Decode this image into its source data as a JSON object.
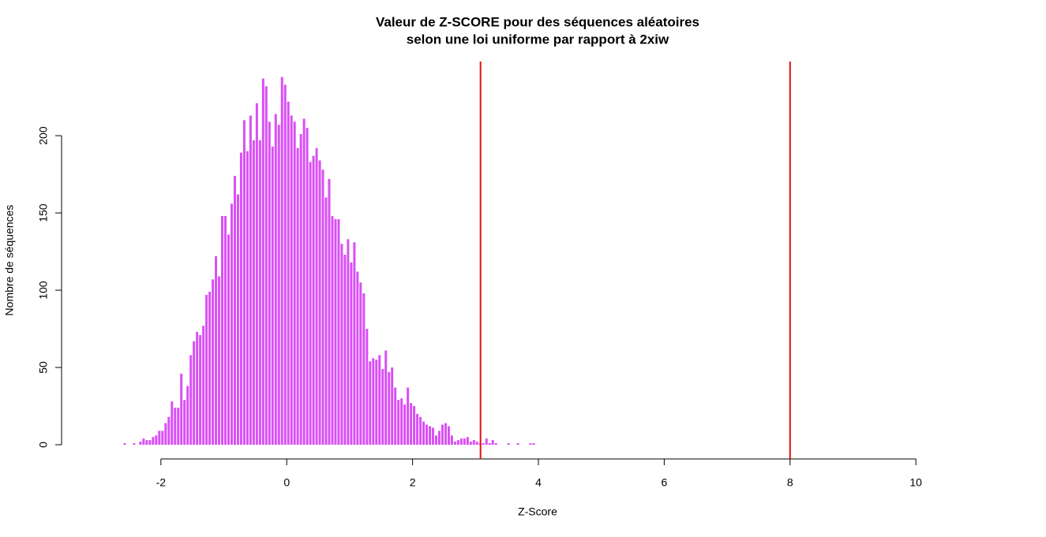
{
  "chart_data": {
    "type": "histogram",
    "title": "Valeur de Z-SCORE pour des séquences aléatoires",
    "subtitle": "selon une loi uniforme par rapport à 2xiw",
    "x_label": "Z-Score",
    "y_label": "Nombre de séquences",
    "color": "#d94ff5",
    "bins": [
      -2.6,
      -2.55,
      -2.5,
      -2.45,
      -2.4,
      -2.35,
      -2.3,
      -2.25,
      -2.2,
      -2.15,
      -2.1,
      -2.05,
      -2,
      -1.95,
      -1.9,
      -1.85,
      -1.8,
      -1.75,
      -1.7,
      -1.65,
      -1.6,
      -1.55,
      -1.5,
      -1.45,
      -1.4,
      -1.35,
      -1.3,
      -1.25,
      -1.2,
      -1.15,
      -1.1,
      -1.05,
      -1,
      -0.95,
      -0.9,
      -0.85,
      -0.8,
      -0.75,
      -0.7,
      -0.65,
      -0.6,
      -0.55,
      -0.5,
      -0.45,
      -0.4,
      -0.35,
      -0.3,
      -0.25,
      -0.2,
      -0.15,
      -0.1,
      -0.05,
      0,
      0.05,
      0.1,
      0.15,
      0.2,
      0.25,
      0.3,
      0.35,
      0.4,
      0.45,
      0.5,
      0.55,
      0.6,
      0.65,
      0.7,
      0.75,
      0.8,
      0.85,
      0.9,
      0.95,
      1,
      1.05,
      1.1,
      1.15,
      1.2,
      1.25,
      1.3,
      1.35,
      1.4,
      1.45,
      1.5,
      1.55,
      1.6,
      1.65,
      1.7,
      1.75,
      1.8,
      1.85,
      1.9,
      1.95,
      2,
      2.05,
      2.1,
      2.15,
      2.2,
      2.25,
      2.3,
      2.35,
      2.4,
      2.45,
      2.5,
      2.55,
      2.6,
      2.65,
      2.7,
      2.75,
      2.8,
      2.85,
      2.9,
      2.95,
      3,
      3.05,
      3.1,
      3.15,
      3.2,
      3.25,
      3.3,
      3.35,
      3.4,
      3.45,
      3.5,
      3.55,
      3.6,
      3.65,
      3.7,
      3.75,
      3.8,
      3.85,
      3.9,
      3.95,
      4
    ],
    "values": [
      1,
      0,
      0,
      1,
      0,
      2,
      4,
      3,
      3,
      5,
      6,
      9,
      9,
      14,
      18,
      28,
      24,
      24,
      46,
      29,
      38,
      58,
      67,
      73,
      71,
      77,
      97,
      99,
      107,
      122,
      109,
      148,
      148,
      136,
      156,
      174,
      162,
      189,
      210,
      190,
      213,
      197,
      221,
      197,
      237,
      232,
      209,
      193,
      214,
      207,
      238,
      233,
      222,
      213,
      209,
      192,
      201,
      211,
      205,
      183,
      187,
      192,
      184,
      178,
      160,
      172,
      148,
      146,
      146,
      130,
      123,
      133,
      118,
      131,
      112,
      105,
      98,
      75,
      54,
      56,
      55,
      58,
      49,
      61,
      47,
      50,
      37,
      29,
      30,
      26,
      37,
      27,
      25,
      20,
      18,
      15,
      13,
      12,
      11,
      6,
      9,
      13,
      14,
      12,
      6,
      2,
      3,
      4,
      4,
      5,
      2,
      3,
      2,
      1,
      1,
      4,
      1,
      3,
      1,
      0,
      0,
      0,
      1,
      0,
      0,
      1,
      0,
      0,
      0,
      1,
      1,
      0
    ],
    "vlines": [
      3.08,
      8
    ],
    "vline_color": "#e01010",
    "xlim": [
      -2.6,
      10.6
    ],
    "ylim": [
      0,
      248
    ],
    "xticks": [
      -2,
      0,
      2,
      4,
      6,
      8,
      10
    ],
    "yticks": [
      0,
      50,
      100,
      150,
      200
    ]
  }
}
